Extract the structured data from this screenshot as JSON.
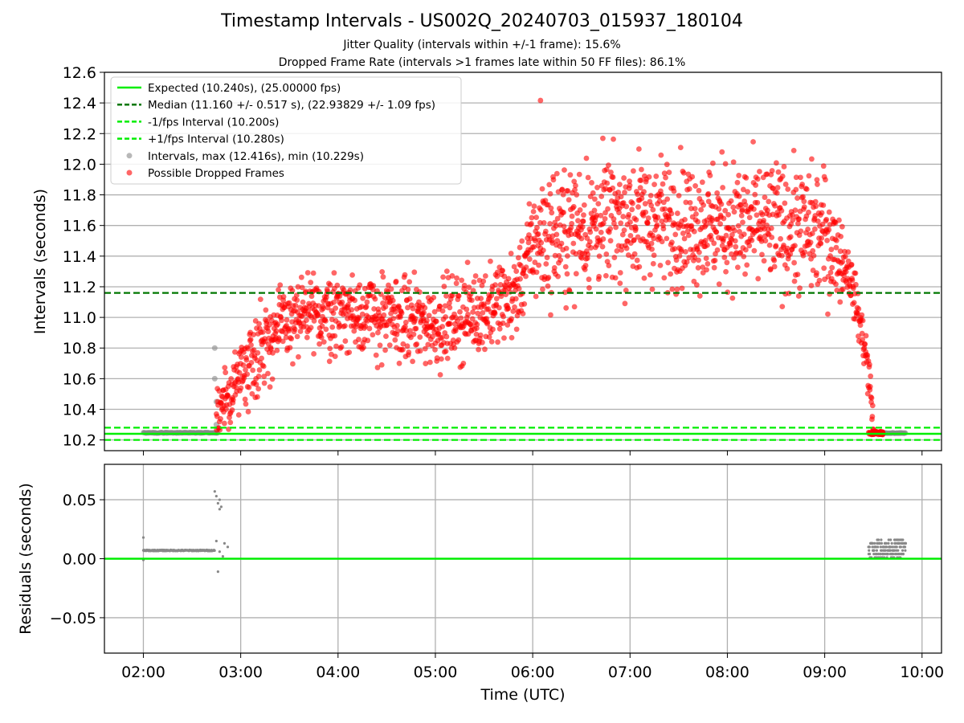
{
  "title": "Timestamp Intervals - US002Q_20240703_015937_180104",
  "subtitle1": "Jitter Quality (intervals within +/-1 frame): 15.6%",
  "subtitle2": "Dropped Frame Rate (intervals >1 frames late within 50 FF files): 86.1%",
  "colors": {
    "expected": "#00ee00",
    "median": "#007700",
    "interval": "#00ee00",
    "normal_points": "#888888",
    "dropped_points": "#ff0000",
    "residual_line": "#00ee00",
    "grid": "#b0b0b0"
  },
  "chart_data": [
    {
      "type": "scatter",
      "ylabel": "Intervals (seconds)",
      "xlim": [
        "01:36",
        "10:12"
      ],
      "ylim": [
        10.13,
        12.6
      ],
      "yticks": [
        "10.2",
        "10.4",
        "10.6",
        "10.8",
        "11.0",
        "11.2",
        "11.4",
        "11.6",
        "11.8",
        "12.0",
        "12.2",
        "12.4",
        "12.6"
      ],
      "grid": true,
      "legend_position": "top-left",
      "legend": [
        "Expected (10.240s), (25.00000 fps)",
        "Median (11.160 +/- 0.517 s), (22.93829 +/- 1.09 fps)",
        "-1/fps Interval (10.200s)",
        "+1/fps Interval (10.280s)",
        "Intervals, max (12.416s), min (10.229s)",
        "Possible Dropped Frames"
      ],
      "reference_lines": {
        "expected": 10.24,
        "median": 11.16,
        "minus_one_frame": 10.2,
        "plus_one_frame": 10.28
      },
      "max_interval": 12.416,
      "min_interval": 10.229,
      "dropped_frames_trend": [
        {
          "time": "02:45",
          "interval": 10.3
        },
        {
          "time": "03:00",
          "interval": 10.65
        },
        {
          "time": "03:15",
          "interval": 10.85
        },
        {
          "time": "03:30",
          "interval": 10.98
        },
        {
          "time": "04:00",
          "interval": 11.05
        },
        {
          "time": "04:30",
          "interval": 11.0
        },
        {
          "time": "05:00",
          "interval": 10.95
        },
        {
          "time": "05:30",
          "interval": 11.05
        },
        {
          "time": "05:50",
          "interval": 11.15
        },
        {
          "time": "06:00",
          "interval": 11.5
        },
        {
          "time": "06:30",
          "interval": 11.6
        },
        {
          "time": "07:00",
          "interval": 11.65
        },
        {
          "time": "08:00",
          "interval": 11.6
        },
        {
          "time": "08:30",
          "interval": 11.6
        },
        {
          "time": "09:00",
          "interval": 11.55
        },
        {
          "time": "09:15",
          "interval": 11.3
        },
        {
          "time": "09:25",
          "interval": 10.8
        },
        {
          "time": "09:29",
          "interval": 10.45
        },
        {
          "time": "09:30",
          "interval": 10.26
        }
      ],
      "normal_intervals": [
        {
          "from": "02:00",
          "to": "02:46",
          "interval": 10.247
        },
        {
          "from": "09:30",
          "to": "09:50",
          "interval": 10.245
        }
      ],
      "gray_outliers": [
        {
          "time": "02:44",
          "interval": 10.8
        },
        {
          "time": "02:44",
          "interval": 10.6
        },
        {
          "time": "02:45",
          "interval": 10.45
        },
        {
          "time": "02:45",
          "interval": 10.3
        }
      ]
    },
    {
      "type": "scatter",
      "xlabel": "Time (UTC)",
      "ylabel": "Residuals (seconds)",
      "ylim": [
        -0.08,
        0.08
      ],
      "yticks": [
        "−0.05",
        "0.00",
        "0.05"
      ],
      "xticks": [
        "02:00",
        "03:00",
        "04:00",
        "05:00",
        "06:00",
        "07:00",
        "08:00",
        "09:00",
        "10:00"
      ],
      "grid": true,
      "zero_line": 0.0,
      "clusters": [
        {
          "from": "02:00",
          "to": "02:44",
          "residual": 0.007
        },
        {
          "from": "09:27",
          "to": "09:50",
          "residual_min": 0.001,
          "residual_max": 0.016
        }
      ],
      "outliers": [
        {
          "time": "02:00",
          "residual": 0.018
        },
        {
          "time": "02:00",
          "residual": -0.001
        },
        {
          "time": "02:44",
          "residual": 0.057
        },
        {
          "time": "02:45",
          "residual": 0.053
        },
        {
          "time": "02:46",
          "residual": 0.047
        },
        {
          "time": "02:47",
          "residual": 0.05
        },
        {
          "time": "02:47",
          "residual": 0.042
        },
        {
          "time": "02:48",
          "residual": 0.044
        },
        {
          "time": "02:46",
          "residual": -0.011
        },
        {
          "time": "02:45",
          "residual": 0.015
        },
        {
          "time": "02:47",
          "residual": 0.006
        },
        {
          "time": "02:50",
          "residual": 0.013
        },
        {
          "time": "02:52",
          "residual": 0.01
        },
        {
          "time": "02:49",
          "residual": 0.002
        }
      ]
    }
  ]
}
